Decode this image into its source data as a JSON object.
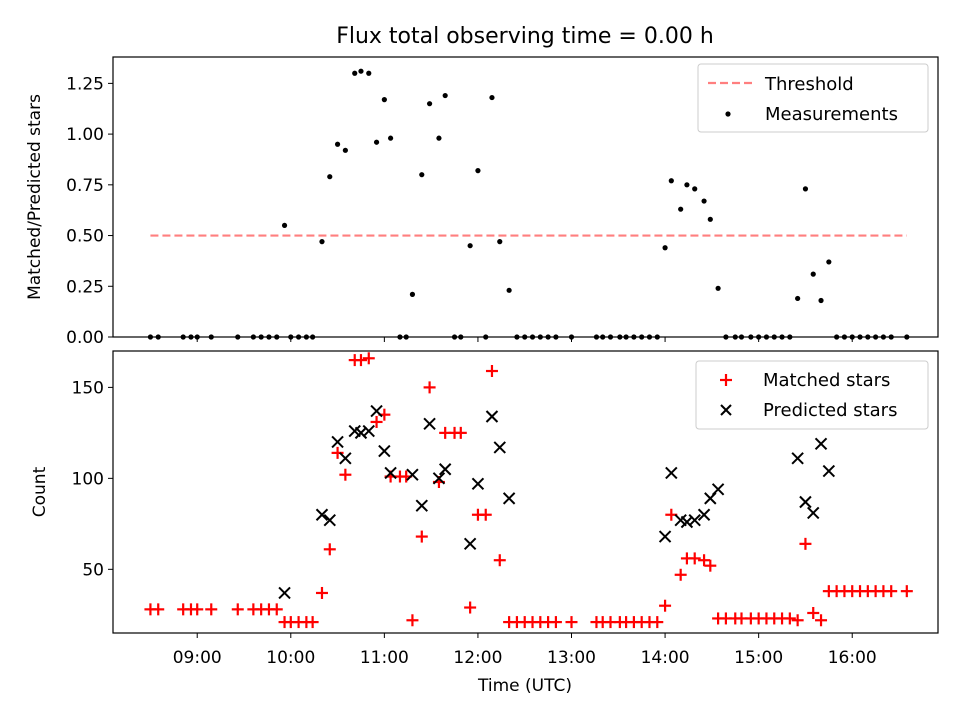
{
  "chart_data": [
    {
      "type": "scatter",
      "title": "Flux total observing time = 0.00 h",
      "xlabel": "",
      "ylabel": "Matched/Predicted stars",
      "ylim": [
        0,
        1.38
      ],
      "xlim": [
        "08:06",
        "16:55"
      ],
      "x_ticks": [
        "09:00",
        "10:00",
        "11:00",
        "12:00",
        "13:00",
        "14:00",
        "15:00",
        "16:00"
      ],
      "y_ticks": [
        "0.00",
        "0.25",
        "0.50",
        "0.75",
        "1.00",
        "1.25"
      ],
      "legend_position": "top-right",
      "grid": false,
      "series": [
        {
          "name": "Threshold",
          "style": "dashed-line",
          "color": "#ff7f7f",
          "points": [
            [
              "08:30",
              0.5
            ],
            [
              "16:35",
              0.5
            ]
          ]
        },
        {
          "name": "Measurements",
          "style": "dot",
          "color": "#000000",
          "points": [
            [
              "08:30",
              0.0
            ],
            [
              "08:35",
              0.0
            ],
            [
              "08:51",
              0.0
            ],
            [
              "08:56",
              0.0
            ],
            [
              "09:00",
              0.0
            ],
            [
              "09:09",
              0.0
            ],
            [
              "09:26",
              0.0
            ],
            [
              "09:36",
              0.0
            ],
            [
              "09:41",
              0.0
            ],
            [
              "09:46",
              0.0
            ],
            [
              "09:51",
              0.0
            ],
            [
              "09:56",
              0.55
            ],
            [
              "10:00",
              0.0
            ],
            [
              "10:05",
              0.0
            ],
            [
              "10:10",
              0.0
            ],
            [
              "10:14",
              0.0
            ],
            [
              "10:20",
              0.47
            ],
            [
              "10:25",
              0.79
            ],
            [
              "10:30",
              0.95
            ],
            [
              "10:35",
              0.92
            ],
            [
              "10:41",
              1.3
            ],
            [
              "10:45",
              1.31
            ],
            [
              "10:50",
              1.3
            ],
            [
              "10:55",
              0.96
            ],
            [
              "11:00",
              1.17
            ],
            [
              "11:04",
              0.98
            ],
            [
              "11:10",
              0.0
            ],
            [
              "11:14",
              0.0
            ],
            [
              "11:18",
              0.21
            ],
            [
              "11:24",
              0.8
            ],
            [
              "11:29",
              1.15
            ],
            [
              "11:35",
              0.98
            ],
            [
              "11:39",
              1.19
            ],
            [
              "11:45",
              0.0
            ],
            [
              "11:49",
              0.0
            ],
            [
              "11:55",
              0.45
            ],
            [
              "12:00",
              0.82
            ],
            [
              "12:05",
              0.0
            ],
            [
              "12:09",
              1.18
            ],
            [
              "12:14",
              0.47
            ],
            [
              "12:20",
              0.23
            ],
            [
              "12:25",
              0.0
            ],
            [
              "12:30",
              0.0
            ],
            [
              "12:35",
              0.0
            ],
            [
              "12:40",
              0.0
            ],
            [
              "12:45",
              0.0
            ],
            [
              "12:50",
              0.0
            ],
            [
              "13:00",
              0.0
            ],
            [
              "13:16",
              0.0
            ],
            [
              "13:20",
              0.0
            ],
            [
              "13:25",
              0.0
            ],
            [
              "13:31",
              0.0
            ],
            [
              "13:35",
              0.0
            ],
            [
              "13:40",
              0.0
            ],
            [
              "13:45",
              0.0
            ],
            [
              "13:50",
              0.0
            ],
            [
              "13:55",
              0.0
            ],
            [
              "14:00",
              0.44
            ],
            [
              "14:04",
              0.77
            ],
            [
              "14:10",
              0.63
            ],
            [
              "14:14",
              0.75
            ],
            [
              "14:19",
              0.73
            ],
            [
              "14:25",
              0.67
            ],
            [
              "14:29",
              0.58
            ],
            [
              "14:34",
              0.24
            ],
            [
              "14:39",
              0.0
            ],
            [
              "14:45",
              0.0
            ],
            [
              "14:49",
              0.0
            ],
            [
              "14:55",
              0.0
            ],
            [
              "15:00",
              0.0
            ],
            [
              "15:05",
              0.0
            ],
            [
              "15:10",
              0.0
            ],
            [
              "15:15",
              0.0
            ],
            [
              "15:20",
              0.0
            ],
            [
              "15:25",
              0.19
            ],
            [
              "15:30",
              0.73
            ],
            [
              "15:35",
              0.31
            ],
            [
              "15:40",
              0.18
            ],
            [
              "15:45",
              0.37
            ],
            [
              "15:50",
              0.0
            ],
            [
              "15:55",
              0.0
            ],
            [
              "16:00",
              0.0
            ],
            [
              "16:05",
              0.0
            ],
            [
              "16:10",
              0.0
            ],
            [
              "16:15",
              0.0
            ],
            [
              "16:20",
              0.0
            ],
            [
              "16:25",
              0.0
            ],
            [
              "16:35",
              0.0
            ]
          ]
        }
      ]
    },
    {
      "type": "scatter",
      "title": "",
      "xlabel": "Time (UTC)",
      "ylabel": "Count",
      "ylim": [
        15,
        170
      ],
      "xlim": [
        "08:06",
        "16:55"
      ],
      "x_ticks": [
        "09:00",
        "10:00",
        "11:00",
        "12:00",
        "13:00",
        "14:00",
        "15:00",
        "16:00"
      ],
      "y_ticks": [
        "50",
        "100",
        "150"
      ],
      "legend_position": "top-right",
      "grid": false,
      "series": [
        {
          "name": "Matched stars",
          "marker": "+",
          "color": "#ff0000",
          "points": [
            [
              "08:30",
              28
            ],
            [
              "08:35",
              28
            ],
            [
              "08:51",
              28
            ],
            [
              "08:56",
              28
            ],
            [
              "09:00",
              28
            ],
            [
              "09:09",
              28
            ],
            [
              "09:26",
              28
            ],
            [
              "09:36",
              28
            ],
            [
              "09:41",
              28
            ],
            [
              "09:46",
              28
            ],
            [
              "09:51",
              28
            ],
            [
              "09:56",
              21
            ],
            [
              "10:00",
              21
            ],
            [
              "10:05",
              21
            ],
            [
              "10:10",
              21
            ],
            [
              "10:14",
              21
            ],
            [
              "10:20",
              37
            ],
            [
              "10:25",
              61
            ],
            [
              "10:30",
              114
            ],
            [
              "10:35",
              102
            ],
            [
              "10:41",
              165
            ],
            [
              "10:45",
              165
            ],
            [
              "10:50",
              166
            ],
            [
              "10:55",
              131
            ],
            [
              "11:00",
              135
            ],
            [
              "11:04",
              101
            ],
            [
              "11:10",
              101
            ],
            [
              "11:14",
              101
            ],
            [
              "11:18",
              22
            ],
            [
              "11:24",
              68
            ],
            [
              "11:29",
              150
            ],
            [
              "11:35",
              98
            ],
            [
              "11:39",
              125
            ],
            [
              "11:45",
              125
            ],
            [
              "11:49",
              125
            ],
            [
              "11:55",
              29
            ],
            [
              "12:00",
              80
            ],
            [
              "12:05",
              80
            ],
            [
              "12:09",
              159
            ],
            [
              "12:14",
              55
            ],
            [
              "12:20",
              21
            ],
            [
              "12:25",
              21
            ],
            [
              "12:30",
              21
            ],
            [
              "12:35",
              21
            ],
            [
              "12:40",
              21
            ],
            [
              "12:45",
              21
            ],
            [
              "12:50",
              21
            ],
            [
              "13:00",
              21
            ],
            [
              "13:16",
              21
            ],
            [
              "13:20",
              21
            ],
            [
              "13:25",
              21
            ],
            [
              "13:31",
              21
            ],
            [
              "13:35",
              21
            ],
            [
              "13:40",
              21
            ],
            [
              "13:45",
              21
            ],
            [
              "13:50",
              21
            ],
            [
              "13:55",
              21
            ],
            [
              "14:00",
              30
            ],
            [
              "14:04",
              80
            ],
            [
              "14:10",
              47
            ],
            [
              "14:14",
              56
            ],
            [
              "14:19",
              56
            ],
            [
              "14:25",
              55
            ],
            [
              "14:29",
              52
            ],
            [
              "14:34",
              23
            ],
            [
              "14:39",
              23
            ],
            [
              "14:45",
              23
            ],
            [
              "14:49",
              23
            ],
            [
              "14:55",
              23
            ],
            [
              "15:00",
              23
            ],
            [
              "15:05",
              23
            ],
            [
              "15:10",
              23
            ],
            [
              "15:15",
              23
            ],
            [
              "15:20",
              23
            ],
            [
              "15:25",
              22
            ],
            [
              "15:30",
              64
            ],
            [
              "15:35",
              26
            ],
            [
              "15:40",
              22
            ],
            [
              "15:45",
              38
            ],
            [
              "15:50",
              38
            ],
            [
              "15:55",
              38
            ],
            [
              "16:00",
              38
            ],
            [
              "16:05",
              38
            ],
            [
              "16:10",
              38
            ],
            [
              "16:15",
              38
            ],
            [
              "16:20",
              38
            ],
            [
              "16:25",
              38
            ],
            [
              "16:35",
              38
            ]
          ]
        },
        {
          "name": "Predicted stars",
          "marker": "x",
          "color": "#000000",
          "points": [
            [
              "09:56",
              37
            ],
            [
              "10:20",
              80
            ],
            [
              "10:25",
              77
            ],
            [
              "10:30",
              120
            ],
            [
              "10:35",
              111
            ],
            [
              "10:41",
              126
            ],
            [
              "10:45",
              125
            ],
            [
              "10:50",
              126
            ],
            [
              "10:55",
              137
            ],
            [
              "11:00",
              115
            ],
            [
              "11:04",
              103
            ],
            [
              "11:18",
              102
            ],
            [
              "11:24",
              85
            ],
            [
              "11:29",
              130
            ],
            [
              "11:35",
              100
            ],
            [
              "11:39",
              105
            ],
            [
              "11:55",
              64
            ],
            [
              "12:00",
              97
            ],
            [
              "12:09",
              134
            ],
            [
              "12:14",
              117
            ],
            [
              "12:20",
              89
            ],
            [
              "14:00",
              68
            ],
            [
              "14:04",
              103
            ],
            [
              "14:10",
              77
            ],
            [
              "14:14",
              76
            ],
            [
              "14:19",
              77
            ],
            [
              "14:25",
              80
            ],
            [
              "14:29",
              89
            ],
            [
              "14:34",
              94
            ],
            [
              "15:25",
              111
            ],
            [
              "15:30",
              87
            ],
            [
              "15:35",
              81
            ],
            [
              "15:40",
              119
            ],
            [
              "15:45",
              104
            ]
          ]
        }
      ]
    }
  ]
}
